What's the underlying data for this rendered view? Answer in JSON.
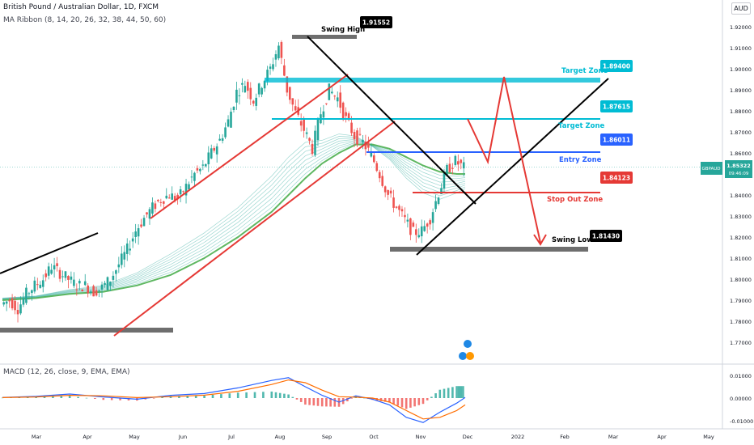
{
  "header": {
    "symbol_line": "British Pound / Australian Dollar, 1D, FXCM",
    "indicator_ribbon": "MA Ribbon (8, 14, 20, 26, 32, 38, 44, 50, 60)",
    "macd_label": "MACD (12, 26, close, 9, EMA, EMA)",
    "currency": "AUD"
  },
  "price_tag": {
    "symbol": "GBPAUD",
    "price": "1.85322",
    "countdown": "09:46:09"
  },
  "chart_data": {
    "type": "line",
    "title": "British Pound / Australian Dollar, 1D, FXCM",
    "ylim": [
      1.765,
      1.925
    ],
    "y_ticks": [
      "1.92000",
      "1.91000",
      "1.90000",
      "1.89000",
      "1.88000",
      "1.87000",
      "1.86000",
      "1.85000",
      "1.84000",
      "1.83000",
      "1.82000",
      "1.81000",
      "1.80000",
      "1.79000",
      "1.78000",
      "1.77000"
    ],
    "x_ticks": [
      "Mar",
      "Apr",
      "May",
      "Jun",
      "Jul",
      "Aug",
      "Sep",
      "Oct",
      "Nov",
      "Dec",
      "2022",
      "Feb",
      "Mar",
      "Apr",
      "May"
    ],
    "price_path": [
      [
        0,
        1.788
      ],
      [
        1,
        1.79
      ],
      [
        2,
        1.786
      ],
      [
        3,
        1.793
      ],
      [
        4,
        1.797
      ],
      [
        5,
        1.8
      ],
      [
        6,
        1.806
      ],
      [
        7,
        1.803
      ],
      [
        8,
        1.8
      ],
      [
        9,
        1.797
      ],
      [
        10,
        1.797
      ],
      [
        11,
        1.794
      ],
      [
        12,
        1.796
      ],
      [
        13,
        1.8
      ],
      [
        14,
        1.807
      ],
      [
        15,
        1.814
      ],
      [
        16,
        1.823
      ],
      [
        17,
        1.829
      ],
      [
        18,
        1.834
      ],
      [
        19,
        1.838
      ],
      [
        20,
        1.84
      ],
      [
        21,
        1.838
      ],
      [
        22,
        1.844
      ],
      [
        23,
        1.85
      ],
      [
        24,
        1.853
      ],
      [
        25,
        1.86
      ],
      [
        26,
        1.866
      ],
      [
        27,
        1.875
      ],
      [
        28,
        1.889
      ],
      [
        29,
        1.893
      ],
      [
        30,
        1.885
      ],
      [
        31,
        1.893
      ],
      [
        32,
        1.9
      ],
      [
        33,
        1.911
      ],
      [
        34,
        1.89
      ],
      [
        35,
        1.879
      ],
      [
        36,
        1.871
      ],
      [
        37,
        1.862
      ],
      [
        38,
        1.879
      ],
      [
        39,
        1.89
      ],
      [
        40,
        1.886
      ],
      [
        41,
        1.876
      ],
      [
        42,
        1.868
      ],
      [
        43,
        1.865
      ],
      [
        44,
        1.859
      ],
      [
        45,
        1.85
      ],
      [
        46,
        1.84
      ],
      [
        47,
        1.834
      ],
      [
        48,
        1.828
      ],
      [
        49,
        1.822
      ],
      [
        50,
        1.823
      ],
      [
        51,
        1.829
      ],
      [
        52,
        1.841
      ],
      [
        53,
        1.852
      ],
      [
        54,
        1.856
      ],
      [
        55,
        1.853
      ]
    ],
    "ribbon_fast": [
      [
        0,
        1.791
      ],
      [
        4,
        1.792
      ],
      [
        8,
        1.795
      ],
      [
        12,
        1.797
      ],
      [
        16,
        1.803
      ],
      [
        20,
        1.812
      ],
      [
        24,
        1.822
      ],
      [
        28,
        1.834
      ],
      [
        32,
        1.849
      ],
      [
        34,
        1.858
      ],
      [
        36,
        1.865
      ],
      [
        38,
        1.866
      ],
      [
        40,
        1.869
      ],
      [
        42,
        1.868
      ],
      [
        44,
        1.863
      ],
      [
        46,
        1.857
      ],
      [
        48,
        1.848
      ],
      [
        50,
        1.841
      ],
      [
        52,
        1.838
      ],
      [
        54,
        1.841
      ],
      [
        55,
        1.843
      ]
    ],
    "ribbon_slow": [
      [
        0,
        1.79
      ],
      [
        4,
        1.791
      ],
      [
        8,
        1.793
      ],
      [
        12,
        1.794
      ],
      [
        16,
        1.797
      ],
      [
        20,
        1.802
      ],
      [
        24,
        1.81
      ],
      [
        28,
        1.82
      ],
      [
        32,
        1.832
      ],
      [
        34,
        1.84
      ],
      [
        36,
        1.848
      ],
      [
        38,
        1.855
      ],
      [
        40,
        1.86
      ],
      [
        42,
        1.864
      ],
      [
        44,
        1.864
      ],
      [
        46,
        1.862
      ],
      [
        48,
        1.858
      ],
      [
        50,
        1.854
      ],
      [
        52,
        1.851
      ],
      [
        54,
        1.85
      ],
      [
        55,
        1.85
      ]
    ],
    "annotations": {
      "swing_high": {
        "label": "Swing High",
        "value": "1.91552",
        "price": 1.9155
      },
      "target_zone_1": {
        "label": "Target Zone",
        "value": "1.89400",
        "price": 1.894
      },
      "target_zone_2": {
        "label": "Target Zone",
        "value": "1.87615",
        "price": 1.8762
      },
      "entry_zone": {
        "label": "Entry Zone",
        "value": "1.86011",
        "price": 1.8601
      },
      "stop_out_zone": {
        "label": "Stop Out Zone",
        "value": "1.84123",
        "price": 1.8412
      },
      "swing_low": {
        "label": "Swing Low",
        "value": "1.81430",
        "price": 1.8143
      }
    },
    "macd": {
      "y_ticks": [
        "0.01000",
        "0.00000",
        "-0.01000"
      ],
      "ylim": [
        -0.013,
        0.013
      ],
      "macd_line": [
        [
          0,
          0.0003
        ],
        [
          4,
          0.0008
        ],
        [
          8,
          0.0018
        ],
        [
          12,
          0.0005
        ],
        [
          16,
          -0.0005
        ],
        [
          20,
          0.0012
        ],
        [
          24,
          0.002
        ],
        [
          28,
          0.0045
        ],
        [
          32,
          0.0078
        ],
        [
          34,
          0.009
        ],
        [
          36,
          0.005
        ],
        [
          38,
          0.0012
        ],
        [
          40,
          -0.0018
        ],
        [
          42,
          0.001
        ],
        [
          44,
          -0.0005
        ],
        [
          46,
          -0.003
        ],
        [
          48,
          -0.0085
        ],
        [
          50,
          -0.0108
        ],
        [
          52,
          -0.0062
        ],
        [
          54,
          -0.0022
        ],
        [
          55,
          0.0003
        ]
      ],
      "signal_line": [
        [
          0,
          0.0002
        ],
        [
          4,
          0.0005
        ],
        [
          8,
          0.0012
        ],
        [
          12,
          0.001
        ],
        [
          16,
          0.0002
        ],
        [
          20,
          0.0006
        ],
        [
          24,
          0.0013
        ],
        [
          28,
          0.003
        ],
        [
          32,
          0.006
        ],
        [
          34,
          0.008
        ],
        [
          36,
          0.0068
        ],
        [
          38,
          0.0035
        ],
        [
          40,
          0.0006
        ],
        [
          42,
          0.0004
        ],
        [
          44,
          0.0
        ],
        [
          46,
          -0.0018
        ],
        [
          48,
          -0.0055
        ],
        [
          50,
          -0.0092
        ],
        [
          52,
          -0.0085
        ],
        [
          54,
          -0.0055
        ],
        [
          55,
          -0.003
        ]
      ]
    }
  },
  "colors": {
    "bull": "#26a69a",
    "bear": "#ef5350",
    "trend_red": "#e53935",
    "trend_black": "#000000",
    "target_cyan": "#00bcd4",
    "entry_blue": "#2962ff",
    "stop_red": "#e53935",
    "grey_bar": "#6e6e6e",
    "ribbon_fast": "#26a69a",
    "ribbon_slow": "#4caf50",
    "macd_blue": "#2962ff",
    "signal_orange": "#ff6d00",
    "tag_black": "#000000"
  }
}
